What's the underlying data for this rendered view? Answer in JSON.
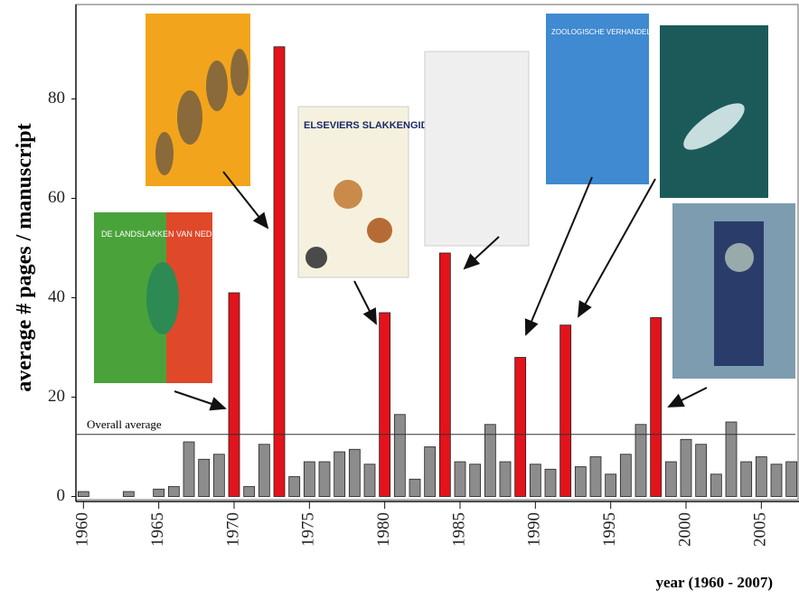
{
  "chart_data": {
    "type": "bar",
    "y_label": "average # pages / manuscript",
    "x_label": "year (1960 - 2007)",
    "x": [
      1960,
      1961,
      1962,
      1963,
      1964,
      1965,
      1966,
      1967,
      1968,
      1969,
      1970,
      1971,
      1972,
      1973,
      1974,
      1975,
      1976,
      1977,
      1978,
      1979,
      1980,
      1981,
      1982,
      1983,
      1984,
      1985,
      1986,
      1987,
      1988,
      1989,
      1990,
      1991,
      1992,
      1993,
      1994,
      1995,
      1996,
      1997,
      1998,
      1999,
      2000,
      2001,
      2002,
      2003,
      2004,
      2005,
      2006,
      2007
    ],
    "values": [
      1,
      0,
      0,
      1,
      0,
      1.5,
      2,
      11,
      7.5,
      8.5,
      41,
      2,
      10.5,
      90.5,
      4,
      7,
      7,
      9,
      9.5,
      6.5,
      37,
      16.5,
      3.5,
      10,
      49,
      7,
      6.5,
      14.5,
      7,
      28,
      6.5,
      5.5,
      34.5,
      6,
      8,
      4.5,
      8.5,
      14.5,
      36,
      7,
      11.5,
      10.5,
      4.5,
      15,
      7,
      8,
      6.5,
      7
    ],
    "colors": [
      "#8c8c8c",
      "#8c8c8c",
      "#8c8c8c",
      "#8c8c8c",
      "#8c8c8c",
      "#8c8c8c",
      "#8c8c8c",
      "#8c8c8c",
      "#8c8c8c",
      "#8c8c8c",
      "#e3131b",
      "#8c8c8c",
      "#8c8c8c",
      "#e3131b",
      "#8c8c8c",
      "#8c8c8c",
      "#8c8c8c",
      "#8c8c8c",
      "#8c8c8c",
      "#8c8c8c",
      "#e3131b",
      "#8c8c8c",
      "#8c8c8c",
      "#8c8c8c",
      "#e3131b",
      "#8c8c8c",
      "#8c8c8c",
      "#8c8c8c",
      "#8c8c8c",
      "#e3131b",
      "#8c8c8c",
      "#8c8c8c",
      "#e3131b",
      "#8c8c8c",
      "#8c8c8c",
      "#8c8c8c",
      "#8c8c8c",
      "#8c8c8c",
      "#e3131b",
      "#8c8c8c",
      "#8c8c8c",
      "#8c8c8c",
      "#8c8c8c",
      "#8c8c8c",
      "#8c8c8c",
      "#8c8c8c",
      "#8c8c8c",
      "#8c8c8c"
    ],
    "xlim": [
      1959.5,
      2007.5
    ],
    "xticks": [
      1960,
      1965,
      1970,
      1975,
      1980,
      1985,
      1990,
      1995,
      2000,
      2005
    ],
    "ylim": [
      -1,
      99
    ],
    "yticks": [
      0,
      20,
      40,
      60,
      80
    ],
    "reference_line": {
      "label": "Overall average",
      "value": 12.5
    },
    "covers": [
      "DE LANDSLAKKEN VAN NEDERLAND",
      "ELSEVIERS SLAKKENGIDS",
      "ZOOLOGISCHE VERHANDELINGEN"
    ]
  }
}
